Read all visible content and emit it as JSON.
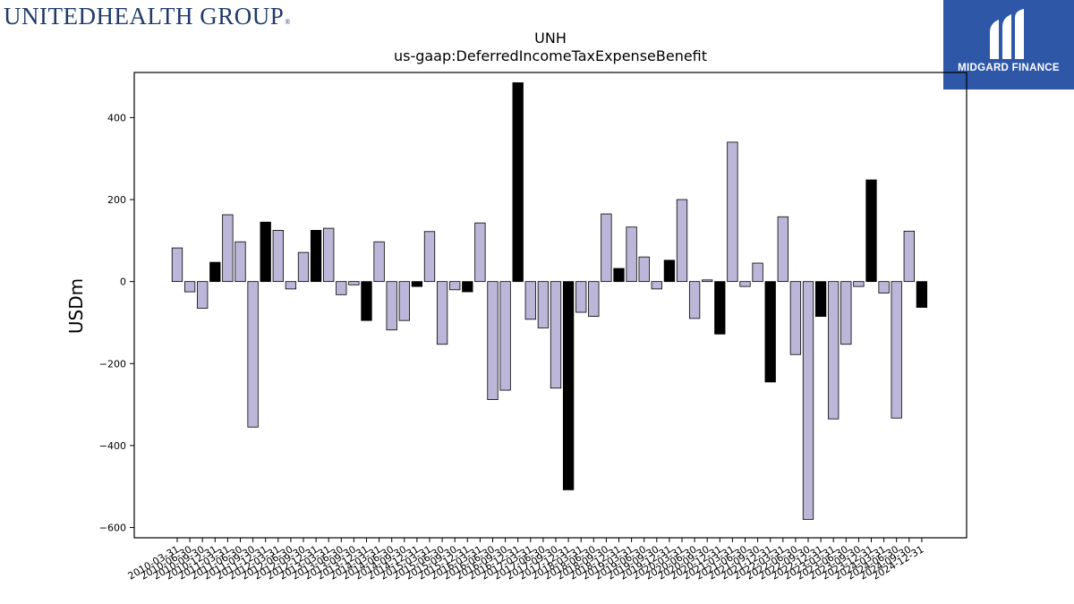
{
  "logos": {
    "left_text": "UNITEDHEALTH GROUP",
    "left_mark": "®",
    "right_text": "MIDGARD FINANCE",
    "right_icon": "midgard-m-icon"
  },
  "colors": {
    "bar_default": "#bcb6d8",
    "bar_highlight": "#000000",
    "bar_edge": "#000000",
    "logo_left": "#1f3a6b",
    "logo_right_bg": "#2e57a8"
  },
  "chart_data": {
    "type": "bar",
    "title": "UNH",
    "subtitle": "us-gaap:DeferredIncomeTaxExpenseBenefit",
    "xlabel": "",
    "ylabel": "USDm",
    "ylim": [
      -625,
      510
    ],
    "yticks": [
      -600,
      -400,
      -200,
      0,
      200,
      400
    ],
    "grid": false,
    "categories": [
      "2010-03-31",
      "2010-06-30",
      "2010-09-30",
      "2010-12-31",
      "2011-03-31",
      "2011-06-30",
      "2011-09-30",
      "2011-12-31",
      "2012-03-31",
      "2012-06-30",
      "2012-09-30",
      "2012-12-31",
      "2013-03-31",
      "2013-06-30",
      "2013-09-30",
      "2013-12-31",
      "2014-03-31",
      "2014-06-30",
      "2014-09-30",
      "2014-12-31",
      "2015-03-31",
      "2015-06-30",
      "2015-09-30",
      "2015-12-31",
      "2016-03-31",
      "2016-06-30",
      "2016-09-30",
      "2016-12-31",
      "2017-03-31",
      "2017-06-30",
      "2017-09-30",
      "2017-12-31",
      "2018-03-31",
      "2018-06-30",
      "2018-09-30",
      "2018-12-31",
      "2019-03-31",
      "2019-06-30",
      "2019-09-30",
      "2019-12-31",
      "2020-03-31",
      "2020-06-30",
      "2020-09-30",
      "2020-12-31",
      "2021-03-31",
      "2021-06-30",
      "2021-09-30",
      "2021-12-31",
      "2022-03-31",
      "2022-06-30",
      "2022-09-30",
      "2022-12-31",
      "2023-03-31",
      "2023-06-30",
      "2023-09-30",
      "2023-12-31",
      "2024-03-31",
      "2024-06-30",
      "2024-09-30",
      "2024-12-31"
    ],
    "values": [
      82,
      -25,
      -65,
      47,
      163,
      97,
      -355,
      145,
      125,
      -18,
      71,
      125,
      130,
      -32,
      -8,
      -95,
      97,
      -118,
      -95,
      -12,
      122,
      -153,
      -20,
      -25,
      143,
      -288,
      -265,
      485,
      -92,
      -113,
      -260,
      -508,
      -75,
      -85,
      165,
      32,
      133,
      60,
      -18,
      52,
      200,
      -90,
      4,
      -128,
      340,
      -12,
      45,
      -245,
      158,
      -178,
      -580,
      -85,
      -335,
      -153,
      -12,
      248,
      -28,
      -333,
      123,
      -63
    ],
    "highlight": [
      false,
      false,
      false,
      true,
      false,
      false,
      false,
      true,
      false,
      false,
      false,
      true,
      false,
      false,
      false,
      true,
      false,
      false,
      false,
      true,
      false,
      false,
      false,
      true,
      false,
      false,
      false,
      true,
      false,
      false,
      false,
      true,
      false,
      false,
      false,
      true,
      false,
      false,
      false,
      true,
      false,
      false,
      false,
      true,
      false,
      false,
      false,
      true,
      false,
      false,
      false,
      true,
      false,
      false,
      false,
      true,
      false,
      false,
      false,
      true
    ]
  }
}
